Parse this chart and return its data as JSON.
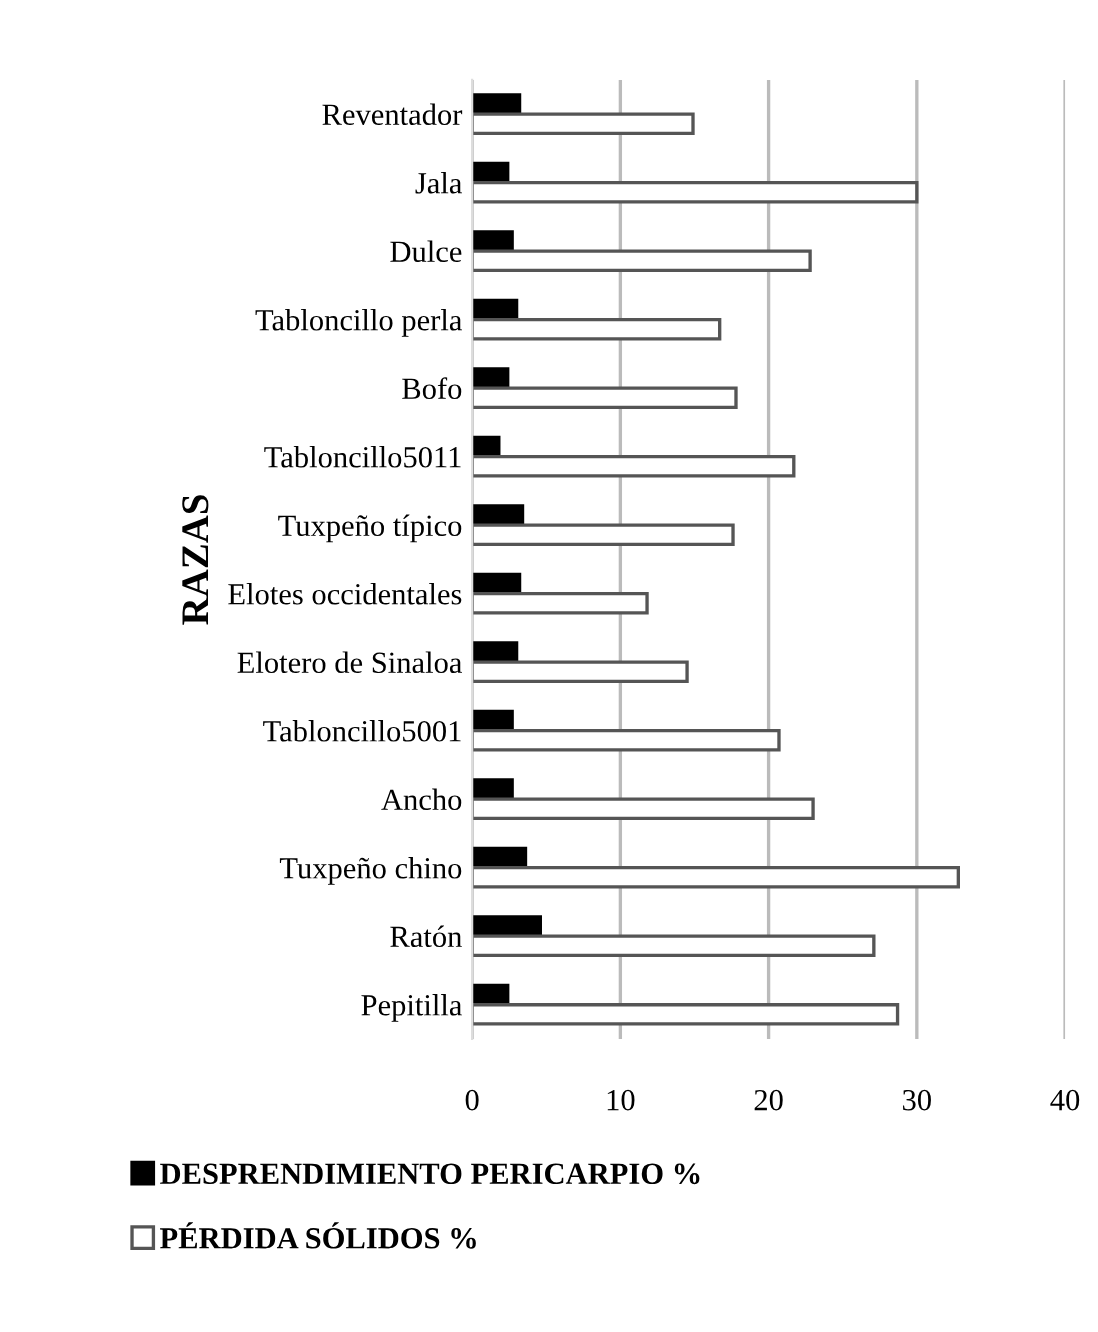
{
  "chart_data": {
    "type": "bar",
    "orientation": "horizontal",
    "ylabel": "RAZAS",
    "categories": [
      "Reventador",
      "Jala",
      "Dulce",
      "Tabloncillo perla",
      "Bofo",
      "Tabloncillo5011",
      "Tuxpeño típico",
      "Elotes occidentales",
      "Elotero de Sinaloa",
      "Tabloncillo5001",
      "Ancho",
      "Tuxpeño chino",
      "Ratón",
      "Pepitilla"
    ],
    "series": [
      {
        "name": "DESPRENDIMIENTO PERICARPIO %",
        "color": "#000000",
        "values": [
          3.2,
          2.4,
          2.7,
          3.0,
          2.4,
          1.8,
          3.4,
          3.2,
          3.0,
          2.7,
          2.7,
          3.6,
          4.6,
          2.4
        ]
      },
      {
        "name": "PÉRDIDA SÓLIDOS %",
        "color": "#ffffff",
        "values": [
          14.9,
          30.0,
          22.8,
          16.7,
          17.8,
          21.7,
          17.6,
          11.8,
          14.5,
          20.7,
          23.0,
          32.8,
          27.1,
          28.7
        ]
      }
    ],
    "xlim": [
      0,
      40
    ],
    "xticks": [
      0,
      10,
      20,
      30,
      40
    ],
    "grid": "x",
    "legend": "bottom"
  }
}
